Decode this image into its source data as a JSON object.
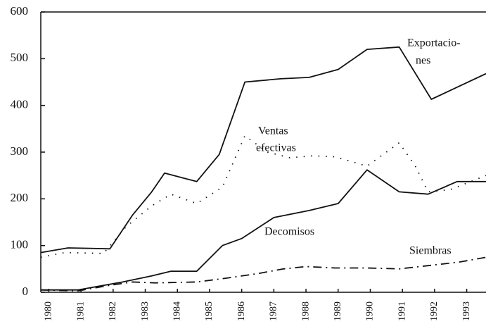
{
  "chart_data": {
    "type": "line",
    "xlim": [
      1979.75,
      1993.6
    ],
    "xticks": [
      1980,
      1981,
      1982,
      1983,
      1984,
      1985,
      1986,
      1987,
      1988,
      1989,
      1990,
      1991,
      1992,
      1993
    ],
    "ylim": [
      0,
      600
    ],
    "yticks": [
      0,
      100,
      200,
      300,
      400,
      500,
      600
    ],
    "series": [
      {
        "name": "Exportaciones",
        "color": "#111111",
        "line_style": "solid",
        "x": [
          1979.75,
          1980.6,
          1981.9,
          1982.6,
          1983.2,
          1983.6,
          1984.6,
          1985.3,
          1986.1,
          1987.2,
          1988.1,
          1989.0,
          1989.9,
          1990.9,
          1991.9,
          1993.6
        ],
        "values": [
          85,
          95,
          93,
          165,
          215,
          255,
          237,
          295,
          450,
          457,
          460,
          477,
          520,
          525,
          413,
          468
        ]
      },
      {
        "name": "Ventas efectivas",
        "color": "#111111",
        "line_style": "dotted",
        "x": [
          1979.75,
          1980.5,
          1981.7,
          1982.4,
          1983.2,
          1983.8,
          1984.6,
          1985.4,
          1986.1,
          1986.8,
          1987.5,
          1988.2,
          1988.9,
          1989.9,
          1990.5,
          1990.9,
          1991.4,
          1991.8,
          1992.5,
          1993.6
        ],
        "values": [
          75,
          85,
          83,
          140,
          185,
          210,
          190,
          225,
          335,
          300,
          288,
          292,
          290,
          270,
          300,
          320,
          270,
          215,
          220,
          250
        ]
      },
      {
        "name": "Decomisos",
        "color": "#111111",
        "line_style": "solid",
        "x": [
          1979.75,
          1980.9,
          1982.3,
          1983.2,
          1983.8,
          1984.6,
          1985.4,
          1986.0,
          1987.0,
          1988.1,
          1989.0,
          1989.9,
          1990.9,
          1991.8,
          1992.7,
          1993.6
        ],
        "values": [
          5,
          5,
          22,
          35,
          45,
          45,
          100,
          115,
          160,
          175,
          190,
          262,
          215,
          210,
          237,
          237
        ]
      },
      {
        "name": "Siembras",
        "color": "#111111",
        "line_style": "dash-dot",
        "x": [
          1979.75,
          1980.9,
          1981.9,
          1982.6,
          1983.3,
          1984.6,
          1985.5,
          1986.5,
          1987.3,
          1988.0,
          1988.9,
          1989.9,
          1990.9,
          1991.8,
          1992.8,
          1993.6
        ],
        "values": [
          5,
          3,
          15,
          22,
          20,
          22,
          30,
          40,
          50,
          55,
          52,
          52,
          50,
          57,
          65,
          75
        ]
      }
    ],
    "annotations": [
      "Exportacio-",
      "nes",
      "Ventas",
      "efectivas",
      "Decomisos",
      "Siembras"
    ]
  }
}
